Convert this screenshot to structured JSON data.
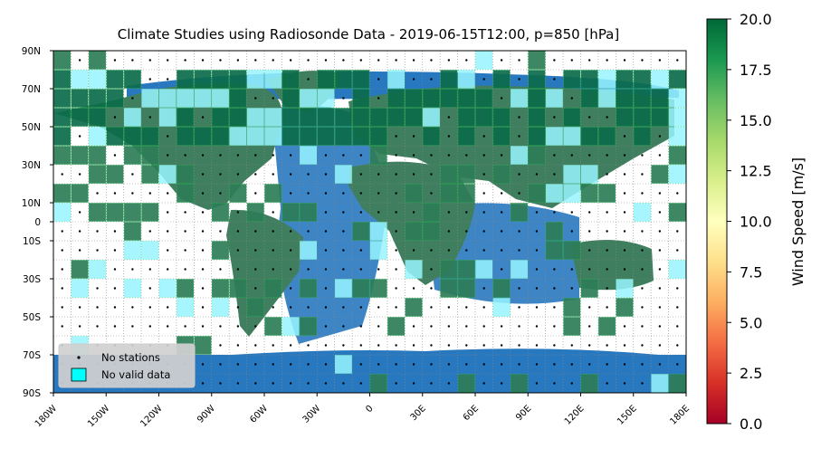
{
  "title": "Climate Studies using Radiosonde Data - 2019-06-15T12:00, p=850 [hPa]",
  "colorbar": {
    "label": "Wind Speed [m/s]",
    "min": 0.0,
    "max": 20.0,
    "ticks": [
      "0.0",
      "2.5",
      "5.0",
      "7.5",
      "10.0",
      "12.5",
      "15.0",
      "17.5",
      "20.0"
    ],
    "colors": [
      "#a50026",
      "#d73027",
      "#f46d43",
      "#fdae61",
      "#fee08b",
      "#ffffbf",
      "#d9ef8b",
      "#a6d96a",
      "#66bd63",
      "#1a9850",
      "#006837"
    ]
  },
  "legend": {
    "no_stations": "No stations",
    "no_valid_data": "No valid data"
  },
  "axes": {
    "lon_labels": [
      "180W",
      "150W",
      "120W",
      "90W",
      "60W",
      "30W",
      "0",
      "30E",
      "60E",
      "90E",
      "120E",
      "150E",
      "180E"
    ],
    "lon_values": [
      -180,
      -150,
      -120,
      -90,
      -60,
      -30,
      0,
      30,
      60,
      90,
      120,
      150,
      180
    ],
    "lat_labels": [
      "90N",
      "70N",
      "50N",
      "30N",
      "10N",
      "0",
      "10S",
      "30S",
      "50S",
      "70S",
      "90S"
    ],
    "lat_values": [
      90,
      70,
      50,
      30,
      10,
      0,
      -10,
      -30,
      -50,
      -70,
      -90
    ]
  },
  "colors": {
    "ocean": "#2878bf",
    "land": "#3f7f5f",
    "cell_high": "#0b6b4a",
    "cell_mid": "#2e7d58",
    "no_data": "#98f5ff",
    "no_data_over_ocean": "#1fb3d9"
  },
  "grid": {
    "cell_degrees": 10
  }
}
